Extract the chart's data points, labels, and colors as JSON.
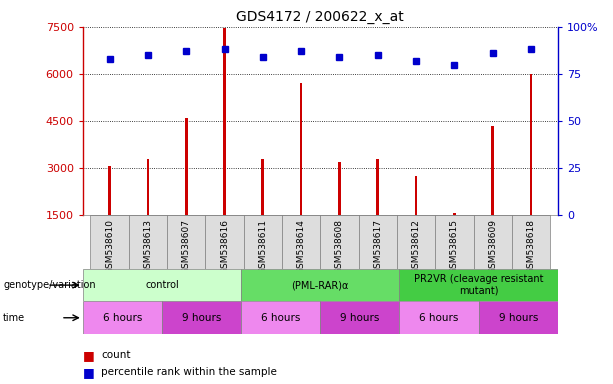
{
  "title": "GDS4172 / 200622_x_at",
  "samples": [
    "GSM538610",
    "GSM538613",
    "GSM538607",
    "GSM538616",
    "GSM538611",
    "GSM538614",
    "GSM538608",
    "GSM538617",
    "GSM538612",
    "GSM538615",
    "GSM538609",
    "GSM538618"
  ],
  "counts": [
    3050,
    3300,
    4600,
    7450,
    3300,
    5700,
    3200,
    3300,
    2750,
    1550,
    4350,
    6000
  ],
  "percentiles": [
    83,
    85,
    87,
    88,
    84,
    87,
    84,
    85,
    82,
    80,
    86,
    88
  ],
  "ylim_left": [
    1500,
    7500
  ],
  "yticks_left": [
    1500,
    3000,
    4500,
    6000,
    7500
  ],
  "ylim_right": [
    0,
    100
  ],
  "yticks_right": [
    0,
    25,
    50,
    75,
    100
  ],
  "bar_color": "#cc0000",
  "dot_color": "#0000cc",
  "grid_color": "#000000",
  "genotype_groups": [
    {
      "label": "control",
      "start": 0,
      "end": 4,
      "color": "#ccffcc"
    },
    {
      "label": "(PML-RAR)α",
      "start": 4,
      "end": 8,
      "color": "#66dd66"
    },
    {
      "label": "PR2VR (cleavage resistant\nmutant)",
      "start": 8,
      "end": 12,
      "color": "#44cc44"
    }
  ],
  "time_groups": [
    {
      "label": "6 hours",
      "start": 0,
      "end": 2,
      "color": "#ee88ee"
    },
    {
      "label": "9 hours",
      "start": 2,
      "end": 4,
      "color": "#cc44cc"
    },
    {
      "label": "6 hours",
      "start": 4,
      "end": 6,
      "color": "#ee88ee"
    },
    {
      "label": "9 hours",
      "start": 6,
      "end": 8,
      "color": "#cc44cc"
    },
    {
      "label": "6 hours",
      "start": 8,
      "end": 10,
      "color": "#ee88ee"
    },
    {
      "label": "9 hours",
      "start": 10,
      "end": 12,
      "color": "#cc44cc"
    }
  ],
  "xlabel_color": "#cc0000",
  "right_axis_color": "#0000cc",
  "legend_count_color": "#cc0000",
  "legend_dot_color": "#0000cc",
  "sample_bg_color": "#dddddd",
  "bar_width": 0.07
}
